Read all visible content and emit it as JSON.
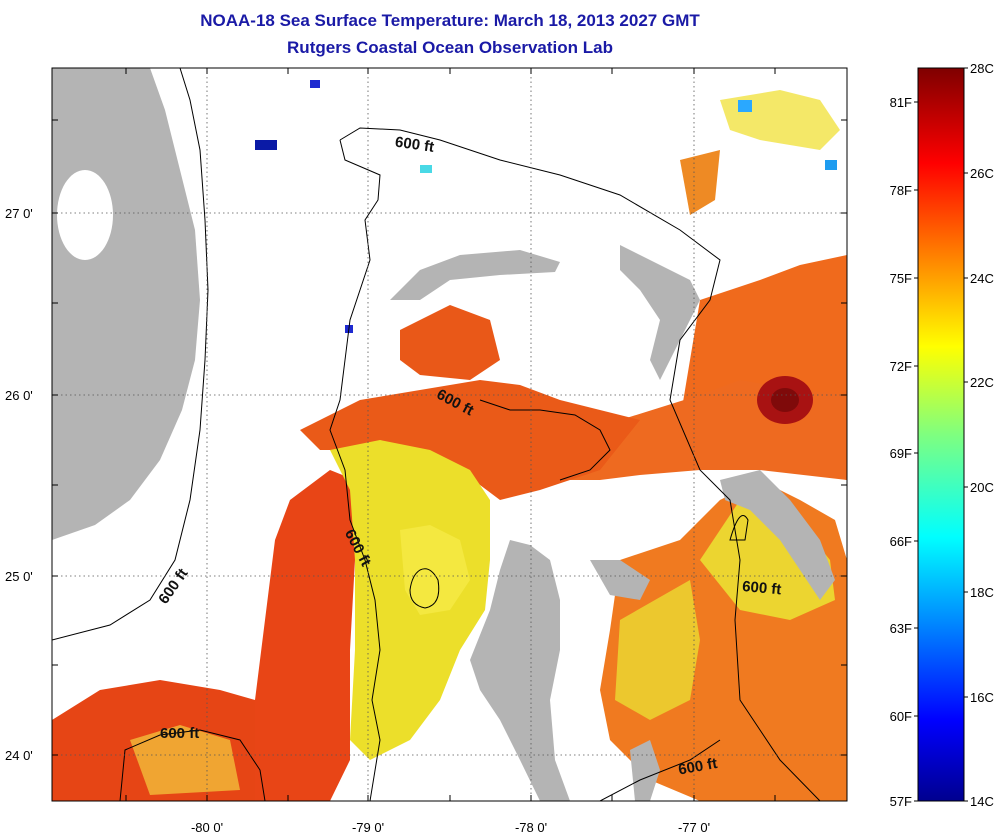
{
  "header": {
    "title": "NOAA-18 Sea Surface Temperature:  March 18, 2013 2027 GMT",
    "subtitle": "Rutgers Coastal Ocean Observation Lab"
  },
  "map": {
    "lat_labels": [
      "27 0'",
      "26 0'",
      "25 0'",
      "24 0'"
    ],
    "lon_labels": [
      "-80 0'",
      "-79 0'",
      "-78 0'",
      "-77 0'"
    ],
    "contour_label": "600 ft",
    "land_color": "#b4b4b4",
    "nodata_color": "#ffffff"
  },
  "colorbar": {
    "celsius_labels": [
      "28C",
      "26C",
      "24C",
      "22C",
      "20C",
      "18C",
      "16C",
      "14C"
    ],
    "fahrenheit_labels": [
      "81F",
      "78F",
      "75F",
      "72F",
      "69F",
      "66F",
      "63F",
      "60F",
      "57F"
    ],
    "range_c": [
      14,
      28
    ],
    "colormap": "jet"
  }
}
